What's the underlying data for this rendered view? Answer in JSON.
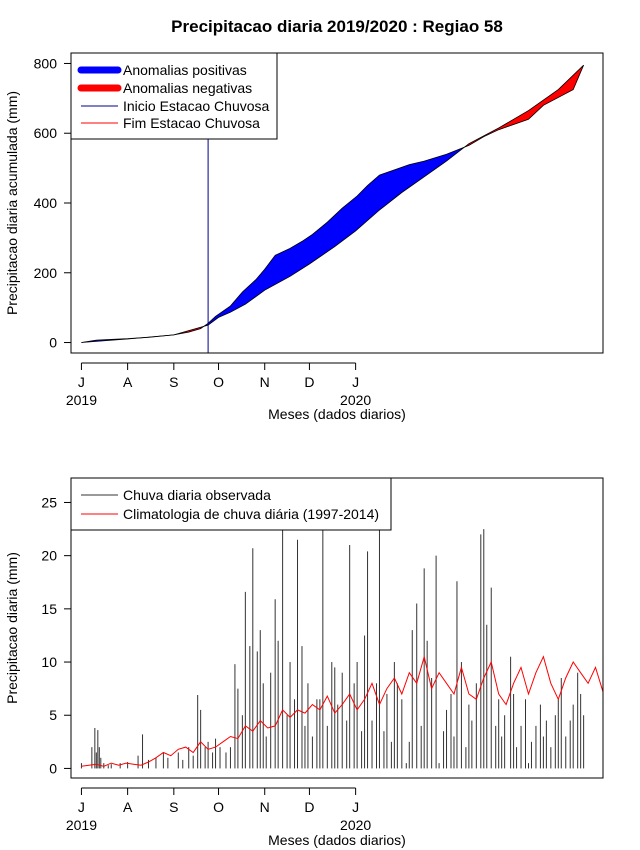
{
  "chart_data": [
    {
      "type": "area",
      "title": "Precipitacao diaria 2019/2020 : Regiao 58",
      "xlabel": "Meses (dados diarios)",
      "ylabel": "Precipitacao diaria acumulada (mm)",
      "x_ticks": [
        "J",
        "A",
        "S",
        "O",
        "N",
        "D",
        "J"
      ],
      "x_year_labels": [
        {
          "month_index": 0,
          "label": "2019"
        },
        {
          "month_index": 6,
          "label": "2020"
        }
      ],
      "y_ticks": [
        0,
        200,
        400,
        600,
        800
      ],
      "ylim": [
        -30,
        830
      ],
      "x_unit": "days since 1 Jul 2019",
      "xlim": [
        -7,
        350
      ],
      "legend_position": "top-left",
      "legend": [
        {
          "label": "Anomalias positivas",
          "color": "#0000ff",
          "style": "thick"
        },
        {
          "label": "Anomalias negativas",
          "color": "#ff0000",
          "style": "thick"
        },
        {
          "label": "Inicio Estacao Chuvosa",
          "color": "#00008b",
          "style": "line"
        },
        {
          "label": "Fim Estacao Chuvosa",
          "color": "#ff0000",
          "style": "line"
        }
      ],
      "rainy_season_start_day": 85,
      "observed": {
        "x": [
          0,
          10,
          20,
          31,
          45,
          62,
          72,
          80,
          85,
          90,
          100,
          108,
          117,
          123,
          130,
          140,
          148,
          155,
          165,
          175,
          185,
          192,
          200,
          210,
          220,
          230,
          245,
          260,
          270,
          280,
          300,
          310,
          330,
          337
        ],
        "y": [
          0,
          7,
          9,
          11,
          15,
          22,
          30,
          40,
          55,
          75,
          105,
          145,
          180,
          210,
          250,
          270,
          290,
          310,
          345,
          385,
          420,
          450,
          480,
          495,
          510,
          520,
          540,
          565,
          590,
          610,
          640,
          680,
          725,
          795
        ]
      },
      "climatology": {
        "x": [
          0,
          31,
          62,
          85,
          92,
          100,
          110,
          123,
          140,
          153,
          170,
          184,
          200,
          215,
          230,
          245,
          260,
          280,
          300,
          320,
          337
        ],
        "y": [
          0,
          10,
          22,
          50,
          72,
          87,
          110,
          150,
          190,
          225,
          275,
          320,
          380,
          430,
          475,
          520,
          570,
          615,
          665,
          725,
          795
        ]
      }
    },
    {
      "type": "bar",
      "xlabel": "Meses (dados diarios)",
      "ylabel": "Precipitacao diaria (mm)",
      "x_ticks": [
        "J",
        "A",
        "S",
        "O",
        "N",
        "D",
        "J"
      ],
      "x_year_labels": [
        {
          "month_index": 0,
          "label": "2019"
        },
        {
          "month_index": 6,
          "label": "2020"
        }
      ],
      "y_ticks": [
        0,
        5,
        10,
        15,
        20,
        25
      ],
      "ylim": [
        -0.9,
        27.3
      ],
      "x_unit": "days since 1 Jul 2019",
      "xlim": [
        -7,
        350
      ],
      "legend_position": "top-left",
      "legend": [
        {
          "label": "Chuva diaria observada",
          "color": "#333333",
          "style": "line"
        },
        {
          "label": "Climatologia de chuva diária (1997-2014)",
          "color": "#ff0000",
          "style": "line"
        }
      ],
      "observed_rain": {
        "x": [
          0,
          7,
          9,
          10,
          11,
          12,
          13,
          15,
          18,
          20,
          26,
          31,
          38,
          41,
          45,
          50,
          55,
          58,
          65,
          68,
          72,
          75,
          78,
          80,
          83,
          85,
          88,
          90,
          93,
          97,
          100,
          103,
          105,
          108,
          110,
          113,
          115,
          118,
          120,
          122,
          124,
          127,
          130,
          132,
          135,
          138,
          140,
          143,
          145,
          148,
          150,
          152,
          155,
          158,
          160,
          162,
          165,
          168,
          170,
          172,
          175,
          178,
          180,
          183,
          185,
          188,
          190,
          192,
          195,
          198,
          200,
          203,
          205,
          208,
          210,
          212,
          215,
          218,
          220,
          222,
          225,
          228,
          230,
          232,
          235,
          238,
          240,
          243,
          245,
          248,
          250,
          252,
          255,
          258,
          260,
          262,
          265,
          268,
          270,
          272,
          275,
          278,
          280,
          282,
          284,
          288,
          290,
          292,
          295,
          298,
          300,
          302,
          305,
          308,
          310,
          312,
          315,
          318,
          320,
          322,
          325,
          328,
          330,
          333,
          335,
          337
        ],
        "y": [
          0.5,
          2.0,
          3.8,
          1.5,
          3.6,
          2.0,
          1.0,
          0.5,
          0.3,
          0.4,
          0.5,
          0.6,
          1.2,
          3.2,
          0.8,
          1.0,
          1.5,
          1.0,
          1.5,
          0.8,
          2.0,
          1.2,
          6.9,
          5.5,
          2.0,
          2.5,
          1.5,
          2.8,
          2.0,
          1.5,
          2.0,
          9.8,
          7.5,
          5.0,
          16.6,
          11.5,
          20.7,
          11.0,
          13.0,
          8.0,
          3.0,
          9.0,
          15.9,
          12.0,
          22.5,
          5.0,
          10.0,
          6.5,
          21.5,
          11.5,
          4.0,
          8.0,
          3.0,
          6.5,
          6.5,
          22.7,
          4.0,
          10.0,
          9.5,
          6.0,
          9.0,
          4.5,
          21.0,
          8.0,
          10.0,
          3.5,
          12.5,
          20.4,
          4.5,
          8.0,
          25.2,
          3.5,
          7.0,
          2.5,
          10.0,
          8.0,
          6.5,
          0.5,
          2.5,
          13.0,
          15.5,
          4.0,
          18.8,
          12.0,
          8.5,
          20.0,
          0.5,
          3.5,
          5.5,
          7.0,
          3.0,
          17.6,
          10.0,
          2.0,
          6.0,
          4.5,
          8.0,
          22.0,
          22.5,
          13.5,
          17.0,
          4.0,
          6.5,
          3.0,
          5.0,
          10.5,
          7.0,
          2.0,
          4.0,
          6.5,
          0.5,
          2.5,
          4.0,
          6.0,
          3.0,
          4.5,
          2.0,
          5.0,
          6.5,
          8.5,
          3.0,
          4.5,
          6.0,
          9.0,
          7.0,
          5.0
        ]
      },
      "climatology_rain": {
        "x": [
          0,
          5,
          10,
          15,
          20,
          25,
          30,
          35,
          40,
          45,
          50,
          55,
          60,
          65,
          70,
          75,
          80,
          85,
          90,
          95,
          100,
          105,
          110,
          115,
          120,
          125,
          130,
          135,
          140,
          145,
          150,
          155,
          160,
          165,
          170,
          175,
          180,
          185,
          190,
          195,
          200,
          205,
          210,
          215,
          220,
          225,
          230,
          235,
          240,
          245,
          250,
          255,
          260,
          265,
          270,
          275,
          280,
          285,
          290,
          295,
          300,
          305,
          310,
          315,
          320,
          325,
          330,
          335,
          340,
          345,
          350
        ],
        "y": [
          0.2,
          0.3,
          0.4,
          0.2,
          0.5,
          0.3,
          0.5,
          0.4,
          0.3,
          0.6,
          1.0,
          1.5,
          1.2,
          1.8,
          2.0,
          1.5,
          2.5,
          1.8,
          2.0,
          2.5,
          3.0,
          2.8,
          4.0,
          3.5,
          4.5,
          3.8,
          4.0,
          5.5,
          4.8,
          5.5,
          5.2,
          6.0,
          5.5,
          6.8,
          5.2,
          6.0,
          7.0,
          5.5,
          6.5,
          8.0,
          6.0,
          7.5,
          8.5,
          7.0,
          9.0,
          8.0,
          10.5,
          7.5,
          9.0,
          8.0,
          7.0,
          9.5,
          7.0,
          6.5,
          8.5,
          10.0,
          7.0,
          6.0,
          8.0,
          9.5,
          7.0,
          9.0,
          10.5,
          8.0,
          6.5,
          8.5,
          10.0,
          9.0,
          8.0,
          9.5,
          7.2
        ]
      }
    }
  ]
}
